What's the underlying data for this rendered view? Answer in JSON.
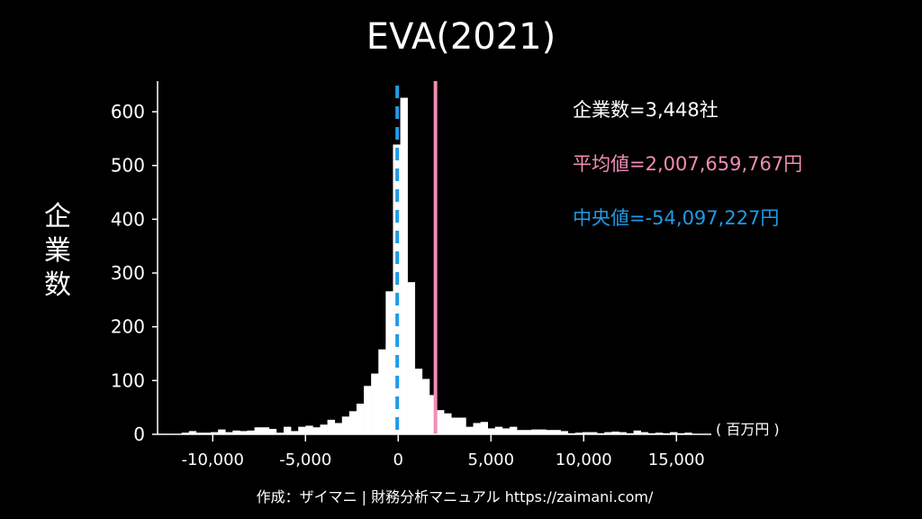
{
  "chart_data": {
    "type": "bar",
    "title": "EVA(2021)",
    "ylabel": "企業数",
    "xlabel": "( 百万円 )",
    "xlim": [
      -12975,
      16880
    ],
    "ylim": [
      0,
      657
    ],
    "bin_start": -11680,
    "bin_width": 393,
    "values": [
      3,
      6,
      3,
      3,
      4,
      9,
      4,
      7,
      6,
      7,
      13,
      13,
      10,
      3,
      14,
      6,
      14,
      16,
      13,
      18,
      27,
      21,
      33,
      43,
      57,
      90,
      113,
      158,
      266,
      539,
      626,
      283,
      122,
      103,
      73,
      45,
      39,
      31,
      31,
      14,
      21,
      23,
      11,
      14,
      11,
      14,
      8,
      8,
      9,
      9,
      8,
      8,
      6,
      2,
      3,
      4,
      4,
      2,
      4,
      5,
      4,
      2,
      7,
      4,
      2,
      3,
      2,
      4,
      2,
      3
    ],
    "xticks": [
      -10000,
      -5000,
      0,
      5000,
      10000,
      15000
    ],
    "xtick_labels": [
      "-10,000",
      "-5,000",
      "0",
      "5,000",
      "10,000",
      "15,000"
    ],
    "yticks": [
      0,
      100,
      200,
      300,
      400,
      500,
      600
    ],
    "ytick_labels": [
      "0",
      "100",
      "200",
      "300",
      "400",
      "500",
      "600"
    ],
    "mean": 2007.659767,
    "median": -54.097227,
    "colors": {
      "bars": "#ffffff",
      "mean": "#f38cb5",
      "median": "#1e9be8",
      "axis": "#ffffff"
    },
    "grid": false
  },
  "legend": {
    "count": "企業数=3,448社",
    "mean": "平均値=2,007,659,767円",
    "median": "中央値=-54,097,227円"
  },
  "footer": "作成：ザイマニ | 財務分析マニュアル https://zaimani.com/"
}
